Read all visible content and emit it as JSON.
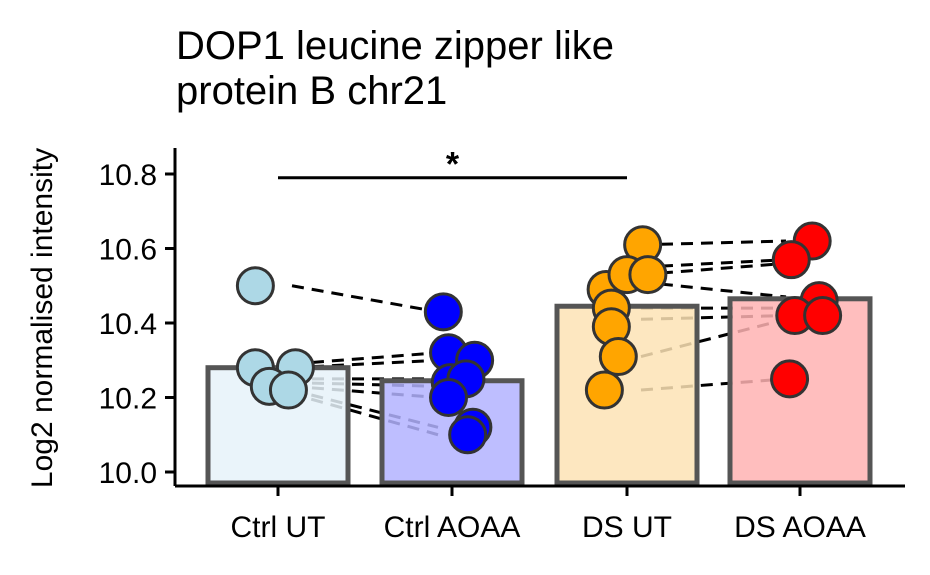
{
  "chart_data": {
    "type": "bar",
    "title": "DOP1 leucine zipper like protein B chr21",
    "title_lines": [
      "DOP1 leucine zipper like",
      "protein B chr21"
    ],
    "xlabel": "",
    "ylabel": "Log2 normalised intensity",
    "categories": [
      "Ctrl UT",
      "Ctrl AOAA",
      "DS UT",
      "DS AOAA"
    ],
    "yticks": [
      10.0,
      10.2,
      10.4,
      10.6,
      10.8
    ],
    "ytick_labels": [
      "10.0",
      "10.2",
      "10.4",
      "10.6",
      "10.8"
    ],
    "ylim": [
      9.96,
      10.87
    ],
    "grid": false,
    "legend": "none",
    "bar_values": [
      10.28,
      10.245,
      10.445,
      10.465
    ],
    "bar_fill_colors": [
      "#e6f2f9",
      "#b3b3ff",
      "#fde3b5",
      "#ffb3b3"
    ],
    "bar_edge_color": "#555555",
    "point_colors": [
      "#add8e6",
      "#0000ff",
      "#ffa500",
      "#ff0000"
    ],
    "point_edge_color": "#333333",
    "points": [
      [
        {
          "dx": -0.13,
          "y": 10.5
        },
        {
          "dx": -0.13,
          "y": 10.28
        },
        {
          "dx": 0.1,
          "y": 10.28
        },
        {
          "dx": -0.05,
          "y": 10.23
        },
        {
          "dx": 0.06,
          "y": 10.22
        }
      ],
      [
        {
          "dx": -0.05,
          "y": 10.43
        },
        {
          "dx": -0.02,
          "y": 10.32
        },
        {
          "dx": 0.13,
          "y": 10.3
        },
        {
          "dx": -0.01,
          "y": 10.24
        },
        {
          "dx": 0.08,
          "y": 10.25
        },
        {
          "dx": -0.02,
          "y": 10.2
        },
        {
          "dx": 0.12,
          "y": 10.12
        },
        {
          "dx": 0.09,
          "y": 10.1
        }
      ],
      [
        {
          "dx": 0.09,
          "y": 10.61
        },
        {
          "dx": -0.12,
          "y": 10.49
        },
        {
          "dx": 0.0,
          "y": 10.53
        },
        {
          "dx": 0.12,
          "y": 10.53
        },
        {
          "dx": -0.09,
          "y": 10.44
        },
        {
          "dx": -0.09,
          "y": 10.39
        },
        {
          "dx": -0.05,
          "y": 10.31
        },
        {
          "dx": -0.13,
          "y": 10.22
        }
      ],
      [
        {
          "dx": 0.07,
          "y": 10.62
        },
        {
          "dx": -0.05,
          "y": 10.57
        },
        {
          "dx": 0.11,
          "y": 10.46
        },
        {
          "dx": -0.03,
          "y": 10.42
        },
        {
          "dx": 0.13,
          "y": 10.42
        },
        {
          "dx": -0.06,
          "y": 10.25
        }
      ]
    ],
    "paired_lines": [
      {
        "from": [
          0,
          10.5
        ],
        "to": [
          1,
          10.43
        ]
      },
      {
        "from": [
          0,
          10.29
        ],
        "to": [
          1,
          10.32
        ]
      },
      {
        "from": [
          0,
          10.28
        ],
        "to": [
          1,
          10.3
        ]
      },
      {
        "from": [
          0,
          10.25
        ],
        "to": [
          1,
          10.25
        ]
      },
      {
        "from": [
          0,
          10.24
        ],
        "to": [
          1,
          10.23
        ]
      },
      {
        "from": [
          0,
          10.23
        ],
        "to": [
          1,
          10.2
        ]
      },
      {
        "from": [
          0,
          10.22
        ],
        "to": [
          1,
          10.12
        ]
      },
      {
        "from": [
          0,
          10.21
        ],
        "to": [
          1,
          10.1
        ]
      },
      {
        "from": [
          2,
          10.61
        ],
        "to": [
          3,
          10.62
        ]
      },
      {
        "from": [
          2,
          10.55
        ],
        "to": [
          3,
          10.57
        ]
      },
      {
        "from": [
          2,
          10.53
        ],
        "to": [
          3,
          10.56
        ]
      },
      {
        "from": [
          2,
          10.51
        ],
        "to": [
          3,
          10.47
        ]
      },
      {
        "from": [
          2,
          10.44
        ],
        "to": [
          3,
          10.44
        ]
      },
      {
        "from": [
          2,
          10.41
        ],
        "to": [
          3,
          10.42
        ]
      },
      {
        "from": [
          2,
          10.31
        ],
        "to": [
          3,
          10.41
        ]
      },
      {
        "from": [
          2,
          10.22
        ],
        "to": [
          3,
          10.25
        ]
      }
    ],
    "significance": [
      {
        "from_category": 0,
        "to_category": 2,
        "y": 10.79,
        "label": "*"
      }
    ]
  }
}
